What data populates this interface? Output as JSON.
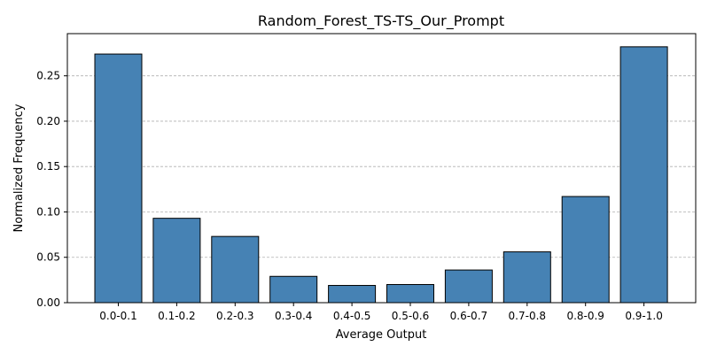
{
  "chart_data": {
    "type": "bar",
    "title": "Random_Forest_TS-TS_Our_Prompt",
    "xlabel": "Average Output",
    "ylabel": "Normalized Frequency",
    "categories": [
      "0.0-0.1",
      "0.1-0.2",
      "0.2-0.3",
      "0.3-0.4",
      "0.4-0.5",
      "0.5-0.6",
      "0.6-0.7",
      "0.7-0.8",
      "0.8-0.9",
      "0.9-1.0"
    ],
    "values": [
      0.274,
      0.093,
      0.073,
      0.029,
      0.019,
      0.02,
      0.036,
      0.056,
      0.117,
      0.282
    ],
    "ylim": [
      0,
      0.2965
    ],
    "yticks": [
      0.0,
      0.05,
      0.1,
      0.15,
      0.2,
      0.25
    ],
    "ytick_labels": [
      "0.00",
      "0.05",
      "0.10",
      "0.15",
      "0.20",
      "0.25"
    ],
    "grid": "y-dashed",
    "bar_color": "#4682b4",
    "edge_color": "#000000"
  }
}
